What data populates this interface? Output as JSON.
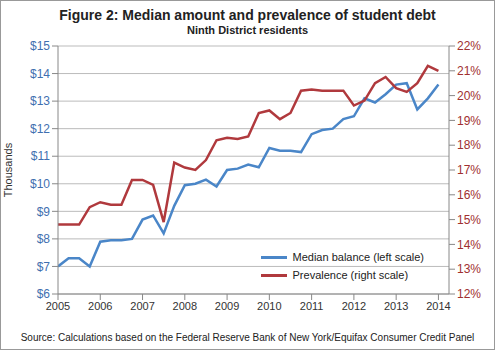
{
  "chart_data": {
    "type": "line",
    "title": "Figure 2: Median amount and prevalence of student debt",
    "subtitle": "Ninth District residents",
    "y_label": "Thousands",
    "source": "Source: Calculations based on the Federal Reserve Bank of New York/Equifax Consumer Credit Panel",
    "x": [
      2005,
      2005.25,
      2005.5,
      2005.75,
      2006,
      2006.25,
      2006.5,
      2006.75,
      2007,
      2007.25,
      2007.5,
      2007.75,
      2008,
      2008.25,
      2008.5,
      2008.75,
      2009,
      2009.25,
      2009.5,
      2009.75,
      2010,
      2010.25,
      2010.5,
      2010.75,
      2011,
      2011.25,
      2011.5,
      2011.75,
      2012,
      2012.25,
      2012.5,
      2012.75,
      2013,
      2013.25,
      2013.5,
      2013.75,
      2014
    ],
    "xlim": [
      2005,
      2014.25
    ],
    "xticks": [
      2005,
      2006,
      2007,
      2008,
      2009,
      2010,
      2011,
      2012,
      2013,
      2014
    ],
    "ylim": [
      6,
      15
    ],
    "yticks": [
      {
        "value": 6,
        "label": "$6"
      },
      {
        "value": 7,
        "label": "$7"
      },
      {
        "value": 8,
        "label": "$8"
      },
      {
        "value": 9,
        "label": "$9"
      },
      {
        "value": 10,
        "label": "$10"
      },
      {
        "value": 11,
        "label": "$11"
      },
      {
        "value": 12,
        "label": "$12"
      },
      {
        "value": 13,
        "label": "$13"
      },
      {
        "value": 14,
        "label": "$14"
      },
      {
        "value": 15,
        "label": "$15"
      }
    ],
    "y2lim": [
      12,
      22
    ],
    "y2ticks": [
      {
        "value": 12,
        "label": "12%"
      },
      {
        "value": 13,
        "label": "13%"
      },
      {
        "value": 14,
        "label": "14%"
      },
      {
        "value": 15,
        "label": "15%"
      },
      {
        "value": 16,
        "label": "16%"
      },
      {
        "value": 17,
        "label": "17%"
      },
      {
        "value": 18,
        "label": "18%"
      },
      {
        "value": 19,
        "label": "19%"
      },
      {
        "value": 20,
        "label": "20%"
      },
      {
        "value": 21,
        "label": "21%"
      },
      {
        "value": 22,
        "label": "22%"
      }
    ],
    "grid": true,
    "legend": "lower right",
    "series": [
      {
        "name": "Median balance (left scale)",
        "color": "#4a86c8",
        "values": [
          7.0,
          7.3,
          7.3,
          7.0,
          7.9,
          7.95,
          7.95,
          8.0,
          8.7,
          8.85,
          8.2,
          9.2,
          9.95,
          10.0,
          10.15,
          9.9,
          10.5,
          10.55,
          10.7,
          10.6,
          11.3,
          11.2,
          11.2,
          11.15,
          11.8,
          11.95,
          12.0,
          12.35,
          12.45,
          13.1,
          12.95,
          13.25,
          13.6,
          13.65,
          12.7,
          13.1,
          13.6
        ]
      },
      {
        "name": "Prevalence (right scale)",
        "color": "#b0393d",
        "axis": "y2",
        "values": [
          14.8,
          14.8,
          14.8,
          15.5,
          15.7,
          15.6,
          15.6,
          16.6,
          16.6,
          16.4,
          14.9,
          17.3,
          17.1,
          17.0,
          17.4,
          18.2,
          18.3,
          18.25,
          18.35,
          19.3,
          19.4,
          19.05,
          19.3,
          20.2,
          20.25,
          20.2,
          20.2,
          20.2,
          19.6,
          19.8,
          20.5,
          20.75,
          20.3,
          20.15,
          20.5,
          21.2,
          21.0
        ]
      }
    ]
  }
}
